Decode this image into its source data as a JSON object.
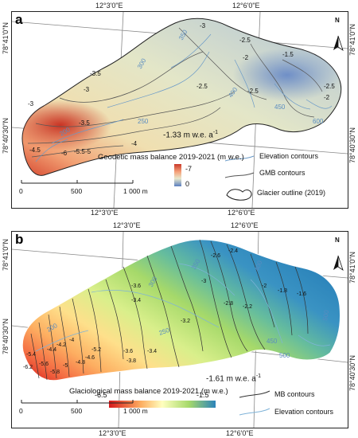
{
  "panel_a": {
    "letter": "a",
    "coords": {
      "top_left_lon": "12°3'0\"E",
      "top_right_lon": "12°6'0\"E",
      "bottom_left_lon": "12°3'0\"E",
      "bottom_right_lon": "12°6'0\"E",
      "left_top_lat": "78°41'0\"N",
      "left_bottom_lat": "78°40'30\"N",
      "right_top_lat": "78°41'0\"N",
      "right_bottom_lat": "78°40'30\"N"
    },
    "mass_balance": "-1.33 m w.e. a",
    "mass_balance_exp": "-1",
    "colorbar": {
      "title": "Geodetic mass balance 2019-2021 (m w.e.)",
      "top": "-7",
      "bottom": "0",
      "colors": [
        "#c9392a",
        "#f5a27a",
        "#e8e8cc",
        "#5b7fc0"
      ]
    },
    "legend": {
      "elevation": "Elevation contours",
      "gmb": "GMB contours",
      "outline": "Glacier outline (2019)"
    },
    "scale": {
      "zero": "0",
      "mid": "500",
      "end": "1 000 m"
    },
    "north": "N",
    "elevation_labels": [
      "350",
      "300",
      "400",
      "450",
      "600",
      "250",
      "200"
    ],
    "gmb_labels": [
      "-3",
      "-2.5",
      "-2",
      "-1.5",
      "-3.5",
      "-3",
      "-2.5",
      "-2.5",
      "-2",
      "-3.5",
      "-4",
      "-4.5",
      "-6",
      "-5.5",
      "-5",
      "-3",
      "-2.5"
    ]
  },
  "panel_b": {
    "letter": "b",
    "coords": {
      "top_left_lon": "12°3'0\"E",
      "top_right_lon": "12°6'0\"E",
      "bottom_left_lon": "12°3'0\"E",
      "bottom_right_lon": "12°6'0\"E",
      "left_top_lat": "78°41'0\"N",
      "left_bottom_lat": "78°40'30\"N",
      "right_top_lat": "78°41'0\"N",
      "right_bottom_lat": "78°40'30\"N"
    },
    "mass_balance": "-1.61 m w.e. a",
    "mass_balance_exp": "-1",
    "colorbar": {
      "title": "Glaciological mass balance 2019-2021 (m w.e.)",
      "left": "-6.5",
      "right": "-1.5",
      "colors": [
        "#d7191c",
        "#fdae61",
        "#ffffbf",
        "#a6d96a",
        "#2b83ba"
      ]
    },
    "legend": {
      "mb": "MB contours",
      "elevation": "Elevation contours"
    },
    "scale": {
      "zero": "0",
      "mid": "500",
      "end": "1 000 m"
    },
    "north": "N",
    "mb_labels": [
      "-2.6",
      "-2.4",
      "-3",
      "-3.6",
      "-3.4",
      "-2.8",
      "-2.2",
      "-2",
      "-1.8",
      "-1.6",
      "-3.2",
      "-3.6",
      "-3.4",
      "-3.8",
      "-4",
      "-4.2",
      "-4.4",
      "-4.6",
      "-4.8",
      "-5",
      "-5.2",
      "-5.4",
      "-5.6",
      "-5.8",
      "-6.2"
    ],
    "elevation_labels": [
      "300",
      "350",
      "400",
      "450",
      "500",
      "250",
      "200",
      "500"
    ]
  }
}
